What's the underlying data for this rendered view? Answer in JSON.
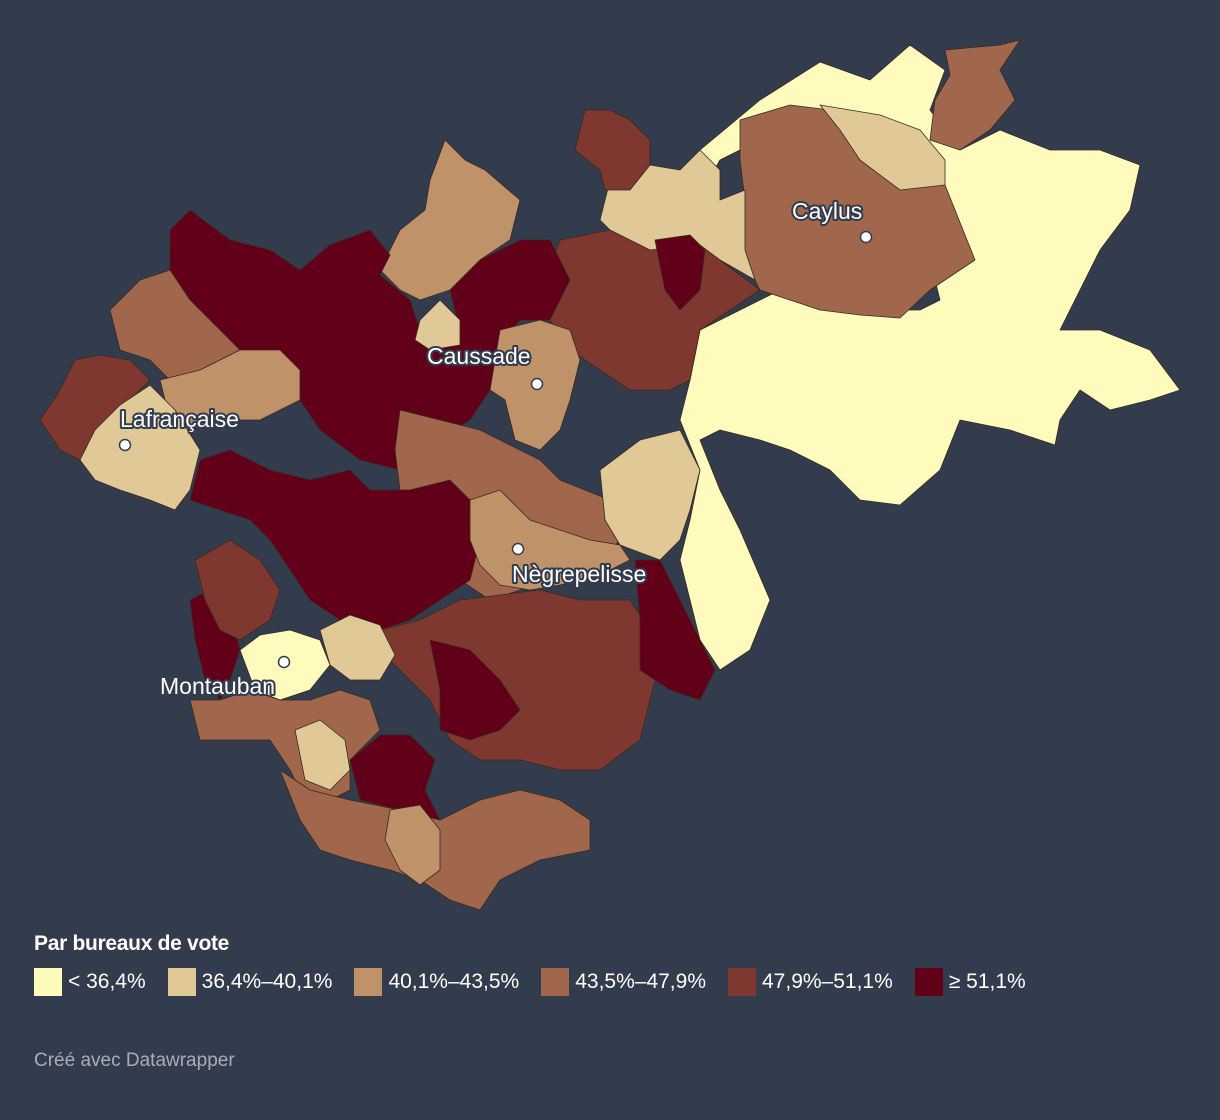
{
  "map": {
    "legend_title": "Par bureaux de vote",
    "classes": [
      {
        "label": "< 36,4%",
        "color": "#fffbbd"
      },
      {
        "label": "36,4%–40,1%",
        "color": "#e0c897"
      },
      {
        "label": "40,1%–43,5%",
        "color": "#c09269"
      },
      {
        "label": "43,5%–47,9%",
        "color": "#a0674d"
      },
      {
        "label": "47,9%–51,1%",
        "color": "#7e3830"
      },
      {
        "label": "≥ 51,1%",
        "color": "#620019"
      }
    ],
    "cities": [
      {
        "name": "Caylus"
      },
      {
        "name": "Caussade"
      },
      {
        "name": "Lafrançaise"
      },
      {
        "name": "Nègrepelisse"
      },
      {
        "name": "Montauban"
      }
    ],
    "credit": "Créé avec Datawrapper"
  }
}
